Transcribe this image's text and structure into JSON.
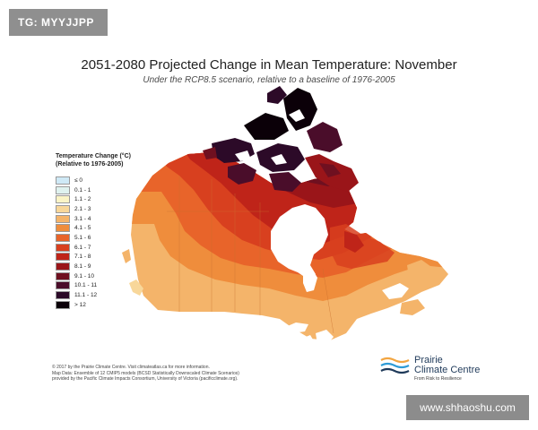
{
  "tag": "TG: MYYJJPP",
  "title": "2051-2080 Projected Change in Mean Temperature: November",
  "subtitle": "Under the RCP8.5 scenario, relative to a baseline of 1976-2005",
  "legend": {
    "title_line1": "Temperature Change (°C)",
    "title_line2": "(Relative to 1976-2005)",
    "items": [
      {
        "label": "≤ 0",
        "color": "#cfe9f6"
      },
      {
        "label": "0.1 - 1",
        "color": "#dff2ef"
      },
      {
        "label": "1.1 - 2",
        "color": "#fbf4c6"
      },
      {
        "label": "2.1 - 3",
        "color": "#f8d79a"
      },
      {
        "label": "3.1 - 4",
        "color": "#f4b46a"
      },
      {
        "label": "4.1 - 5",
        "color": "#ef8d3c"
      },
      {
        "label": "5.1 - 6",
        "color": "#e8642a"
      },
      {
        "label": "6.1 - 7",
        "color": "#d8401f"
      },
      {
        "label": "7.1 - 8",
        "color": "#bf2419"
      },
      {
        "label": "8.1 - 9",
        "color": "#9a1519"
      },
      {
        "label": "9.1 - 10",
        "color": "#6f1020"
      },
      {
        "label": "10.1 - 11",
        "color": "#4a0d2a"
      },
      {
        "label": "11.1 - 12",
        "color": "#2c0a28"
      },
      {
        "label": "> 12",
        "color": "#0b0008"
      }
    ]
  },
  "credits": {
    "line1": "© 2017 by the Prairie Climate Centre. Visit climateatlas.ca for more information.",
    "line2": "Map Data: Ensemble of 12 CMIP5 models (BCSD Statistically Downscaled Climate Scenarios)",
    "line3": "provided by the Pacific Climate Impacts Consortium, University of Victoria (pacificclimate.org)."
  },
  "logo": {
    "name_line1": "Prairie",
    "name_line2": "Climate Centre",
    "tagline": "From Risk to Resilience",
    "colors": [
      "#f2a541",
      "#2e9bd6",
      "#1f3a5a"
    ]
  },
  "watermark": "www.shhaoshu.com"
}
